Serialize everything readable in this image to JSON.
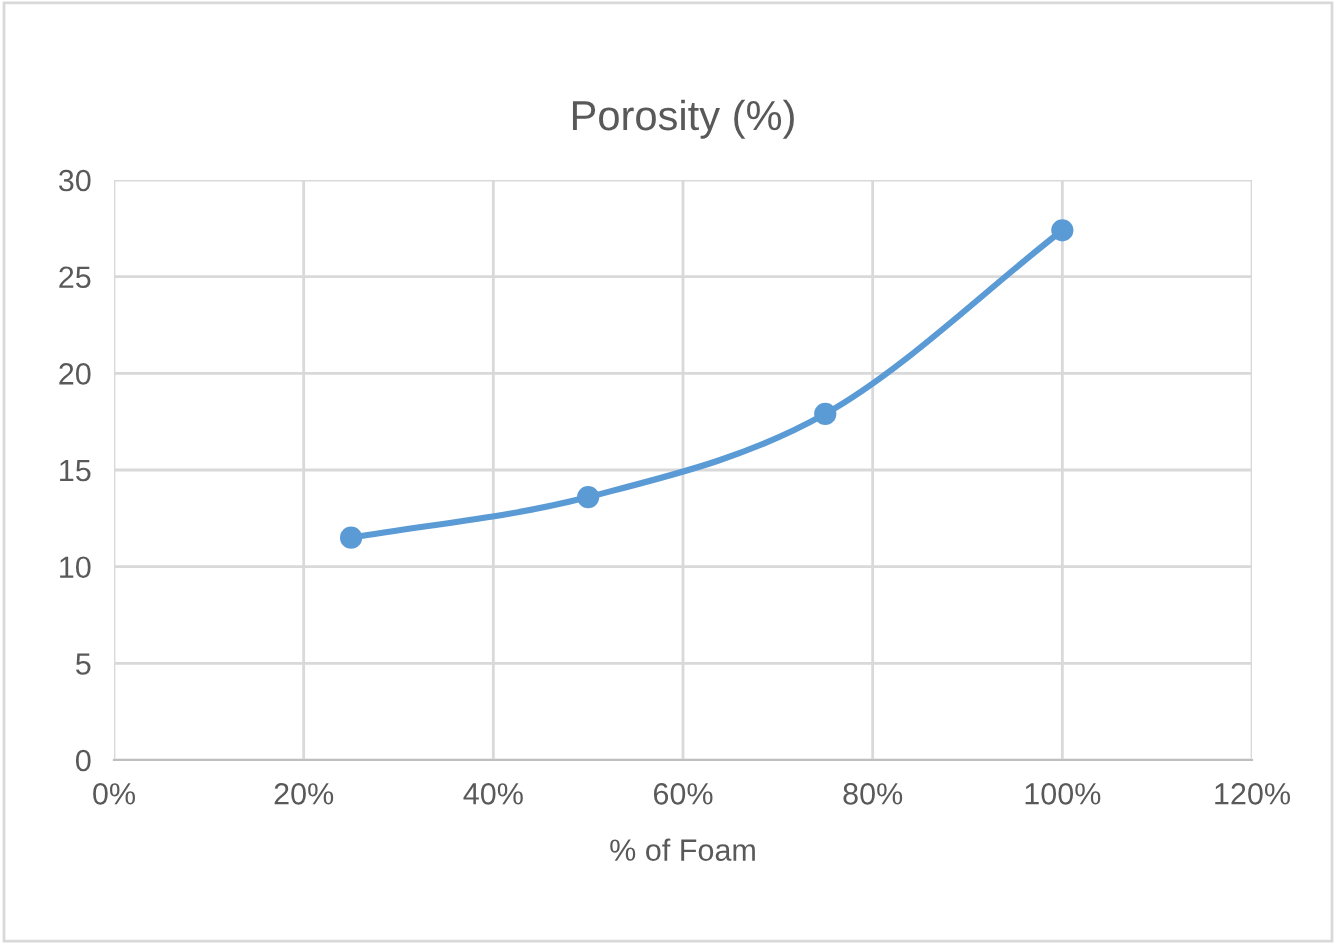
{
  "chart_data": {
    "type": "line",
    "title": "Porosity (%)",
    "xlabel": "% of Foam",
    "x": [
      25,
      50,
      75,
      100
    ],
    "series": [
      {
        "color": "#5b9bd5",
        "values": [
          11.5,
          13.6,
          17.9,
          27.4
        ]
      }
    ],
    "xlim": [
      0,
      120
    ],
    "xticks": [
      {
        "value": 0,
        "label": "0%"
      },
      {
        "value": 20,
        "label": "20%"
      },
      {
        "value": 40,
        "label": "40%"
      },
      {
        "value": 60,
        "label": "60%"
      },
      {
        "value": 80,
        "label": "80%"
      },
      {
        "value": 100,
        "label": "100%"
      },
      {
        "value": 120,
        "label": "120%"
      }
    ],
    "ylim": [
      0,
      30
    ],
    "yticks": [
      0,
      5,
      10,
      15,
      20,
      25,
      30
    ],
    "grid": true,
    "marker": "circle",
    "line_style": "solid"
  }
}
